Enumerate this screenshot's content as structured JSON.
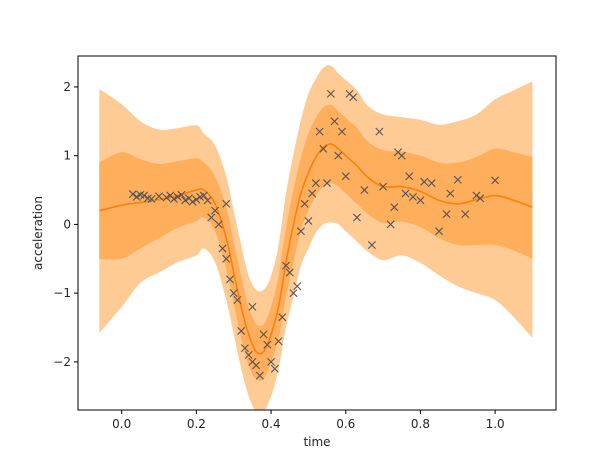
{
  "chart_data": {
    "type": "line",
    "title": "",
    "xlabel": "time",
    "ylabel": "acceleration",
    "xlim": [
      -0.117,
      1.163
    ],
    "ylim": [
      -2.7,
      2.45
    ],
    "xticks": [
      0.0,
      0.2,
      0.4,
      0.6,
      0.8,
      1.0
    ],
    "xtick_labels": [
      "0.0",
      "0.2",
      "0.4",
      "0.6",
      "0.8",
      "1.0"
    ],
    "yticks": [
      -2,
      -1,
      0,
      1,
      2
    ],
    "ytick_labels": [
      "−2",
      "−1",
      "0",
      "1",
      "2"
    ],
    "grid": false,
    "legend": "none",
    "colors": {
      "mean": "#ff7f0e",
      "band_inner": "#ffae5c",
      "band_outer": "#ffcb95",
      "points": "#555555",
      "axes": "#000000"
    },
    "mean_curve": {
      "x": [
        -0.06,
        0.0,
        0.05,
        0.1,
        0.15,
        0.2,
        0.22,
        0.25,
        0.28,
        0.3,
        0.32,
        0.34,
        0.36,
        0.38,
        0.4,
        0.42,
        0.44,
        0.46,
        0.48,
        0.5,
        0.52,
        0.54,
        0.56,
        0.58,
        0.6,
        0.63,
        0.66,
        0.7,
        0.75,
        0.8,
        0.85,
        0.9,
        0.95,
        1.0,
        1.05,
        1.1
      ],
      "y": [
        0.2,
        0.28,
        0.32,
        0.36,
        0.42,
        0.5,
        0.5,
        0.3,
        -0.2,
        -0.7,
        -1.2,
        -1.6,
        -1.85,
        -1.85,
        -1.6,
        -1.2,
        -0.55,
        0.0,
        0.45,
        0.75,
        0.98,
        1.12,
        1.17,
        1.1,
        1.0,
        0.85,
        0.68,
        0.55,
        0.55,
        0.48,
        0.35,
        0.3,
        0.36,
        0.42,
        0.35,
        0.25
      ]
    },
    "bands": [
      {
        "level": "inner",
        "x": [
          -0.06,
          0.0,
          0.05,
          0.1,
          0.15,
          0.2,
          0.22,
          0.25,
          0.28,
          0.3,
          0.32,
          0.34,
          0.36,
          0.38,
          0.4,
          0.42,
          0.44,
          0.46,
          0.48,
          0.5,
          0.52,
          0.54,
          0.56,
          0.58,
          0.6,
          0.63,
          0.66,
          0.7,
          0.75,
          0.8,
          0.85,
          0.9,
          0.95,
          1.0,
          1.05,
          1.1
        ],
        "upper": [
          0.9,
          1.05,
          0.95,
          0.88,
          0.92,
          0.96,
          0.9,
          0.7,
          0.25,
          -0.25,
          -0.75,
          -1.2,
          -1.45,
          -1.45,
          -1.2,
          -0.75,
          -0.05,
          0.5,
          0.98,
          1.32,
          1.55,
          1.7,
          1.74,
          1.65,
          1.55,
          1.4,
          1.2,
          1.08,
          1.06,
          1.0,
          0.9,
          0.9,
          0.98,
          1.1,
          1.05,
          0.98
        ],
        "lower": [
          -0.5,
          -0.5,
          -0.35,
          -0.2,
          -0.05,
          0.05,
          0.1,
          -0.1,
          -0.65,
          -1.15,
          -1.65,
          -2.05,
          -2.25,
          -2.25,
          -2.0,
          -1.65,
          -1.05,
          -0.55,
          -0.08,
          0.2,
          0.42,
          0.55,
          0.6,
          0.55,
          0.45,
          0.3,
          0.15,
          0.02,
          0.04,
          -0.04,
          -0.2,
          -0.3,
          -0.3,
          -0.3,
          -0.38,
          -0.5
        ]
      },
      {
        "level": "outer",
        "x": [
          -0.06,
          0.0,
          0.05,
          0.1,
          0.15,
          0.2,
          0.22,
          0.25,
          0.28,
          0.3,
          0.32,
          0.34,
          0.36,
          0.38,
          0.4,
          0.42,
          0.44,
          0.46,
          0.48,
          0.5,
          0.52,
          0.54,
          0.56,
          0.58,
          0.6,
          0.63,
          0.66,
          0.7,
          0.75,
          0.8,
          0.85,
          0.9,
          0.95,
          1.0,
          1.05,
          1.1
        ],
        "upper": [
          1.97,
          1.75,
          1.5,
          1.38,
          1.4,
          1.44,
          1.32,
          1.15,
          0.7,
          0.2,
          -0.3,
          -0.75,
          -0.95,
          -0.95,
          -0.75,
          -0.3,
          0.45,
          1.02,
          1.52,
          1.9,
          2.12,
          2.28,
          2.31,
          2.2,
          2.1,
          1.95,
          1.72,
          1.6,
          1.56,
          1.52,
          1.45,
          1.5,
          1.6,
          1.82,
          1.95,
          2.08
        ],
        "lower": [
          -1.58,
          -1.2,
          -0.85,
          -0.7,
          -0.55,
          -0.45,
          -0.35,
          -0.55,
          -1.1,
          -1.6,
          -2.1,
          -2.5,
          -2.72,
          -2.72,
          -2.5,
          -2.1,
          -1.5,
          -1.05,
          -0.6,
          -0.35,
          -0.12,
          0.0,
          0.03,
          0.0,
          -0.1,
          -0.25,
          -0.4,
          -0.52,
          -0.45,
          -0.56,
          -0.74,
          -0.9,
          -1.0,
          -1.1,
          -1.35,
          -1.65
        ]
      }
    ],
    "points": {
      "x": [
        0.05,
        0.04,
        0.06,
        0.07,
        0.03,
        0.08,
        0.1,
        0.12,
        0.13,
        0.14,
        0.15,
        0.16,
        0.17,
        0.18,
        0.19,
        0.2,
        0.21,
        0.22,
        0.23,
        0.24,
        0.25,
        0.26,
        0.27,
        0.28,
        0.28,
        0.29,
        0.3,
        0.31,
        0.32,
        0.33,
        0.34,
        0.35,
        0.35,
        0.36,
        0.37,
        0.38,
        0.39,
        0.4,
        0.41,
        0.42,
        0.43,
        0.44,
        0.45,
        0.46,
        0.47,
        0.48,
        0.49,
        0.5,
        0.51,
        0.52,
        0.53,
        0.54,
        0.55,
        0.56,
        0.57,
        0.58,
        0.59,
        0.6,
        0.61,
        0.62,
        0.63,
        0.65,
        0.67,
        0.69,
        0.7,
        0.72,
        0.73,
        0.74,
        0.75,
        0.76,
        0.77,
        0.78,
        0.8,
        0.81,
        0.83,
        0.85,
        0.87,
        0.88,
        0.9,
        0.92,
        0.95,
        0.96,
        1.0
      ],
      "y": [
        0.43,
        0.4,
        0.42,
        0.38,
        0.44,
        0.37,
        0.41,
        0.39,
        0.42,
        0.37,
        0.4,
        0.43,
        0.35,
        0.38,
        0.33,
        0.36,
        0.4,
        0.42,
        0.35,
        0.1,
        0.2,
        0.0,
        -0.35,
        -0.5,
        0.3,
        -0.8,
        -1.0,
        -1.1,
        -1.55,
        -1.8,
        -1.9,
        -2.0,
        -1.2,
        -2.05,
        -2.2,
        -1.6,
        -1.75,
        -2.0,
        -2.1,
        -1.7,
        -1.35,
        -0.6,
        -0.7,
        -1.0,
        -0.9,
        -0.1,
        0.3,
        0.05,
        0.45,
        0.6,
        1.35,
        1.1,
        0.6,
        1.9,
        1.5,
        1.0,
        1.35,
        0.7,
        1.9,
        1.85,
        0.1,
        0.5,
        -0.3,
        1.35,
        0.55,
        0.0,
        0.25,
        1.05,
        1.0,
        0.45,
        0.7,
        0.4,
        0.35,
        0.62,
        0.6,
        -0.1,
        0.15,
        0.45,
        0.65,
        0.15,
        0.42,
        0.38,
        0.64
      ]
    }
  }
}
